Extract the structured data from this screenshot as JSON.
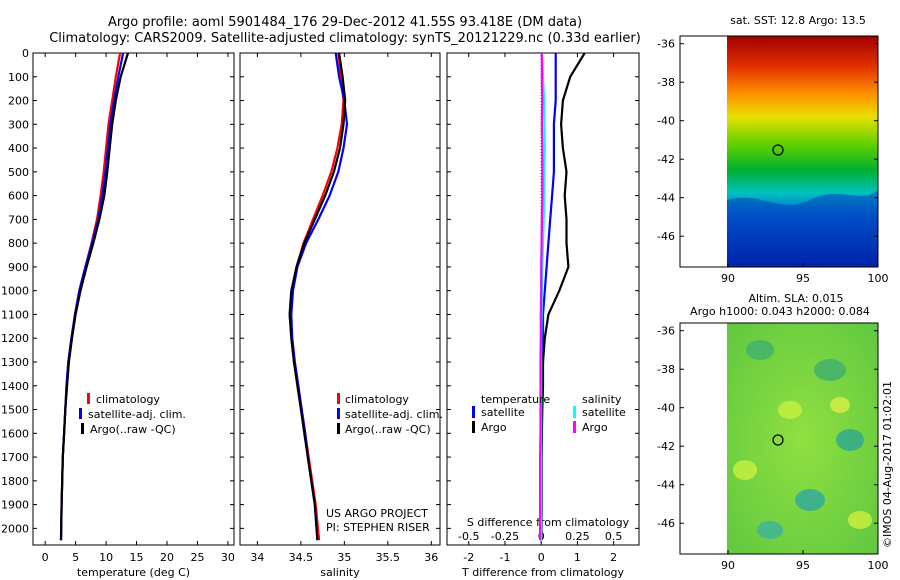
{
  "title": {
    "line1": "Argo profile: aoml 5901484_176 29-Dec-2012 41.55S 93.418E (DM data)",
    "line2": "Climatology: CARS2009. Satellite-adjusted climatology: synTS_20121229.nc (0.33d earlier)"
  },
  "colors": {
    "climatology": "#ff0000",
    "satellite": "#0000ff",
    "argo": "#000000",
    "sal_satellite": "#00ffff",
    "sal_argo": "#ff00ff"
  },
  "depth_ticks": [
    "0",
    "100",
    "200",
    "300",
    "400",
    "500",
    "600",
    "700",
    "800",
    "900",
    "1000",
    "1100",
    "1200",
    "1300",
    "1400",
    "1500",
    "1600",
    "1700",
    "1800",
    "1900",
    "2000"
  ],
  "legend": {
    "climatology": "climatology",
    "satellite_adj": "satellite-adj. clim.",
    "argo": "Argo(..raw -QC)"
  },
  "project": {
    "line1": "US ARGO PROJECT",
    "line2": "PI: STEPHEN RISER"
  },
  "diff_legend": {
    "temperature": "temperature",
    "salinity": "salinity",
    "satellite": "satellite",
    "argo": "Argo"
  },
  "map1": {
    "title": "sat. SST: 12.8 Argo: 13.5",
    "yticks": [
      "-36",
      "-38",
      "-40",
      "-42",
      "-44",
      "-46"
    ],
    "xticks": [
      "90",
      "95",
      "100"
    ]
  },
  "map2": {
    "title1": "Altim. SLA: 0.015",
    "title2": "Argo h1000: 0.043 h2000: 0.084",
    "yticks": [
      "-36",
      "-38",
      "-40",
      "-42",
      "-44",
      "-46"
    ],
    "xticks": [
      "90",
      "95",
      "100"
    ]
  },
  "stamp": "©IMOS 04-Aug-2017 01:02:01",
  "chart_data": [
    {
      "type": "line",
      "xlabel": "temperature (deg C)",
      "ylabel": "",
      "xlim": [
        -2,
        31
      ],
      "ylim": [
        2070,
        0
      ],
      "xticks": [
        "0",
        "5",
        "10",
        "15",
        "20",
        "25",
        "30"
      ],
      "series": [
        {
          "name": "climatology",
          "x": [
            12.3,
            11.6,
            11.0,
            10.4,
            10.0,
            9.6,
            9.1,
            8.5,
            7.6,
            6.6,
            5.6,
            4.9,
            4.3,
            3.8,
            3.5,
            3.3,
            3.1,
            2.9,
            2.8,
            2.7,
            2.6
          ],
          "y": [
            0,
            100,
            200,
            300,
            400,
            500,
            600,
            700,
            800,
            900,
            1000,
            1100,
            1200,
            1300,
            1400,
            1500,
            1600,
            1700,
            1800,
            1900,
            2050
          ]
        },
        {
          "name": "satellite-adj. clim.",
          "x": [
            12.8,
            12.0,
            11.3,
            10.7,
            10.3,
            9.9,
            9.4,
            8.7,
            7.7,
            6.6,
            5.6,
            4.9,
            4.3,
            3.8,
            3.5,
            3.3,
            3.1,
            2.9,
            2.8,
            2.7,
            2.6
          ],
          "y": [
            0,
            100,
            200,
            300,
            400,
            500,
            600,
            700,
            800,
            900,
            1000,
            1100,
            1200,
            1300,
            1400,
            1500,
            1600,
            1700,
            1800,
            1900,
            2050
          ]
        },
        {
          "name": "Argo(..raw -QC)",
          "x": [
            13.6,
            12.4,
            11.6,
            11.0,
            10.6,
            10.2,
            9.7,
            8.9,
            7.9,
            6.8,
            5.8,
            5.0,
            4.4,
            3.9,
            3.6,
            3.3,
            3.1,
            2.9,
            2.8,
            2.7,
            2.6
          ],
          "y": [
            0,
            100,
            200,
            300,
            400,
            500,
            600,
            700,
            800,
            900,
            1000,
            1100,
            1200,
            1300,
            1400,
            1500,
            1600,
            1700,
            1800,
            1900,
            2050
          ]
        }
      ]
    },
    {
      "type": "line",
      "xlabel": "salinity",
      "ylabel": "",
      "xlim": [
        33.8,
        36.1
      ],
      "ylim": [
        2070,
        0
      ],
      "xticks": [
        "34",
        "34.5",
        "35",
        "35.5",
        "36"
      ],
      "series": [
        {
          "name": "climatology",
          "x": [
            34.93,
            34.96,
            34.99,
            34.97,
            34.92,
            34.85,
            34.75,
            34.64,
            34.53,
            34.45,
            34.4,
            34.38,
            34.4,
            34.43,
            34.47,
            34.51,
            34.55,
            34.59,
            34.63,
            34.67,
            34.71
          ],
          "y": [
            0,
            100,
            200,
            300,
            400,
            500,
            600,
            700,
            800,
            900,
            1000,
            1100,
            1200,
            1300,
            1400,
            1500,
            1600,
            1700,
            1800,
            1900,
            2050
          ]
        },
        {
          "name": "satellite-adj. clim.",
          "x": [
            34.9,
            34.94,
            35.0,
            35.03,
            34.99,
            34.93,
            34.83,
            34.7,
            34.56,
            34.46,
            34.41,
            34.39,
            34.4,
            34.43,
            34.47,
            34.51,
            34.55,
            34.58,
            34.62,
            34.66,
            34.69
          ],
          "y": [
            0,
            100,
            200,
            300,
            400,
            500,
            600,
            700,
            800,
            900,
            1000,
            1100,
            1200,
            1300,
            1400,
            1500,
            1600,
            1700,
            1800,
            1900,
            2050
          ]
        },
        {
          "name": "Argo(..raw -QC)",
          "x": [
            34.94,
            34.98,
            35.01,
            34.99,
            34.95,
            34.88,
            34.78,
            34.66,
            34.54,
            34.45,
            34.39,
            34.37,
            34.39,
            34.42,
            34.46,
            34.5,
            34.54,
            34.58,
            34.62,
            34.66,
            34.69
          ],
          "y": [
            0,
            100,
            200,
            300,
            400,
            500,
            600,
            700,
            800,
            900,
            1000,
            1100,
            1200,
            1300,
            1400,
            1500,
            1600,
            1700,
            1800,
            1900,
            2050
          ]
        }
      ]
    },
    {
      "type": "line",
      "xlabel": "T difference from climatology",
      "xlabel2": "S difference from climatology",
      "xlim": [
        -2.6,
        2.7
      ],
      "ylim": [
        2070,
        0
      ],
      "xticks": [
        "-2",
        "-1",
        "0",
        "1",
        "2"
      ],
      "xticks2": [
        "-0.5",
        "-0.25",
        "0",
        "0.25",
        "0.5"
      ],
      "series": [
        {
          "name": "temperature satellite",
          "x": [
            0.4,
            0.4,
            0.4,
            0.35,
            0.35,
            0.35,
            0.3,
            0.25,
            0.2,
            0.15,
            0.1,
            0.05,
            0.05,
            0.05,
            0.03,
            0.02,
            0.02,
            0.01,
            0.01,
            0.01,
            0.0
          ],
          "y": [
            0,
            100,
            200,
            300,
            400,
            500,
            600,
            700,
            800,
            900,
            1000,
            1100,
            1200,
            1300,
            1400,
            1500,
            1600,
            1700,
            1800,
            1900,
            2050
          ]
        },
        {
          "name": "temperature Argo",
          "x": [
            1.2,
            0.8,
            0.6,
            0.55,
            0.6,
            0.7,
            0.65,
            0.7,
            0.7,
            0.75,
            0.5,
            0.2,
            0.1,
            0.05,
            0.05,
            0.03,
            0.02,
            0.01,
            0.01,
            0.01,
            0.01
          ],
          "y": [
            0,
            100,
            200,
            300,
            400,
            500,
            600,
            700,
            800,
            900,
            1000,
            1100,
            1200,
            1300,
            1400,
            1500,
            1600,
            1700,
            1800,
            1900,
            2050
          ]
        },
        {
          "name": "salinity satellite",
          "x": [
            0.02,
            0.05,
            0.08,
            0.09,
            0.1,
            0.08,
            0.08,
            0.07,
            0.05,
            0.03,
            0.02,
            0.01,
            0.0,
            0.0,
            0.0,
            0.0,
            0.0,
            0.0,
            0.0,
            0.0,
            0.0
          ],
          "y": [
            0,
            100,
            200,
            300,
            400,
            500,
            600,
            700,
            800,
            900,
            1000,
            1100,
            1200,
            1300,
            1400,
            1500,
            1600,
            1700,
            1800,
            1900,
            2050
          ]
        },
        {
          "name": "salinity Argo",
          "x": [
            0.02,
            0.02,
            0.03,
            0.02,
            0.03,
            0.03,
            0.03,
            0.02,
            0.01,
            0.0,
            0.0,
            -0.01,
            -0.01,
            -0.02,
            -0.02,
            -0.02,
            -0.02,
            -0.03,
            -0.03,
            -0.03,
            -0.03
          ],
          "y": [
            0,
            100,
            200,
            300,
            400,
            500,
            600,
            700,
            800,
            900,
            1000,
            1100,
            1200,
            1300,
            1400,
            1500,
            1600,
            1700,
            1800,
            1900,
            2050
          ]
        }
      ]
    }
  ]
}
